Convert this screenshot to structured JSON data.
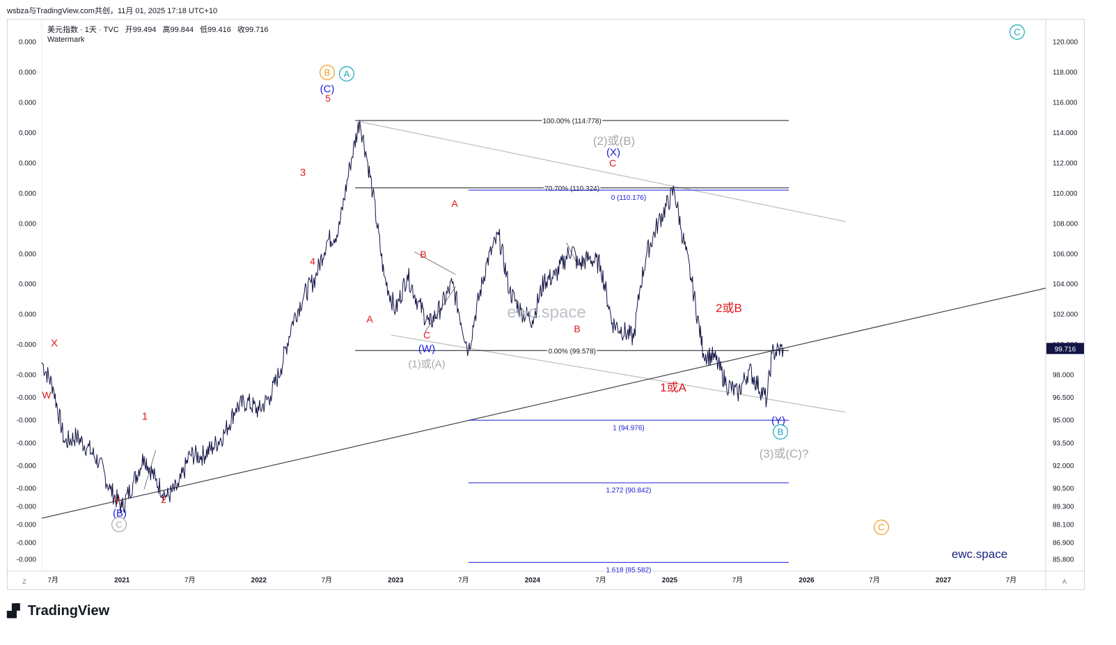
{
  "window_title": "wsbza与TradingView.com共创，11月 01, 2025 17:18 UTC+10",
  "header": {
    "symbol": "美元指数 · 1天 · TVC",
    "open_label": "开",
    "open": "99.494",
    "high_label": "高",
    "high": "99.844",
    "low_label": "低",
    "low": "99.416",
    "close_label": "收",
    "close": "99.716",
    "watermark_label": "Watermark"
  },
  "brand": {
    "logo_text": "TradingView",
    "watermark_center": "ewc.space",
    "watermark_corner": "ewc.space"
  },
  "colors": {
    "price_line": "#131446",
    "wave_red": "#e0151d",
    "wave_blue": "#1a1adb",
    "wave_gray": "#a8a8a8",
    "circle_orange": "#f39a1c",
    "circle_teal": "#14a8bb",
    "fib_black": "#131722",
    "fib_blue": "#1a1adb",
    "current_price_bg": "#131446"
  },
  "chart_data": {
    "type": "line",
    "ylim": [
      85.0,
      121.5
    ],
    "current_price": "99.716",
    "y_ticks": [
      "120.000",
      "118.000",
      "116.000",
      "114.000",
      "112.000",
      "110.000",
      "108.000",
      "106.000",
      "104.000",
      "102.000",
      "100.000",
      "98.000",
      "96.500",
      "95.000",
      "93.500",
      "92.000",
      "90.500",
      "89.300",
      "88.100",
      "86.900",
      "85.800"
    ],
    "left_ticks": [
      "0.000",
      "0.000",
      "0.000",
      "0.000",
      "0.000",
      "0.000",
      "0.000",
      "0.000",
      "0.000",
      "0.000",
      "-0.000",
      "-0.000",
      "-0.000",
      "-0.000",
      "-0.000",
      "-0.000",
      "-0.000",
      "-0.000",
      "-0.000",
      "-0.000",
      "-0.000"
    ],
    "x_ticks": [
      "7月",
      "2021",
      "7月",
      "2022",
      "7月",
      "2023",
      "7月",
      "2024",
      "7月",
      "2025",
      "7月",
      "2026",
      "7月",
      "2027",
      "7月"
    ],
    "axis_corner_left": "Z",
    "axis_corner_right": "A",
    "series": [
      {
        "x": [
          "2020-06-01",
          "2020-07-01",
          "2020-08-01",
          "2020-09-01",
          "2020-10-01",
          "2020-11-01",
          "2020-12-01",
          "2021-01-01",
          "2021-02-01",
          "2021-03-01",
          "2021-04-01",
          "2021-05-01",
          "2021-06-01",
          "2021-07-01",
          "2021-08-01",
          "2021-09-01",
          "2021-10-01",
          "2021-11-01",
          "2021-12-01",
          "2022-01-01",
          "2022-02-01",
          "2022-03-01",
          "2022-04-01",
          "2022-05-01",
          "2022-06-01",
          "2022-07-01",
          "2022-08-01",
          "2022-09-01",
          "2022-09-27",
          "2022-10-15",
          "2022-11-01",
          "2022-12-01",
          "2023-01-01",
          "2023-02-01",
          "2023-03-01",
          "2023-04-01",
          "2023-05-01",
          "2023-06-01",
          "2023-07-14",
          "2023-08-01",
          "2023-09-01",
          "2023-10-03",
          "2023-11-01",
          "2023-12-01",
          "2024-01-01",
          "2024-02-01",
          "2024-03-01",
          "2024-04-16",
          "2024-05-01",
          "2024-06-01",
          "2024-07-01",
          "2024-08-01",
          "2024-09-27",
          "2024-10-15",
          "2024-11-01",
          "2024-12-01",
          "2025-01-13",
          "2025-02-01",
          "2025-03-01",
          "2025-04-01",
          "2025-05-01",
          "2025-06-01",
          "2025-07-01",
          "2025-08-01",
          "2025-09-17",
          "2025-10-01",
          "2025-10-31"
        ],
        "values": [
          98.8,
          97.2,
          93.5,
          93.9,
          93.2,
          92.2,
          90.4,
          89.2,
          90.9,
          92.6,
          91.0,
          89.9,
          90.6,
          92.7,
          92.6,
          93.2,
          94.1,
          95.8,
          96.2,
          95.6,
          96.6,
          98.4,
          101.5,
          103.2,
          104.4,
          106.8,
          107.4,
          111.8,
          114.778,
          112.5,
          110.0,
          104.5,
          102.2,
          104.6,
          102.8,
          101.3,
          102.4,
          104.0,
          99.578,
          101.9,
          105.4,
          107.2,
          103.5,
          102.2,
          101.6,
          104.2,
          104.5,
          106.4,
          105.2,
          105.7,
          105.2,
          101.4,
          100.4,
          103.9,
          106.0,
          108.0,
          110.176,
          107.6,
          104.1,
          99.4,
          99.1,
          97.4,
          96.7,
          98.3,
          96.3,
          99.4,
          99.716
        ]
      }
    ],
    "fib_levels": [
      {
        "label": "100.00% (114.778)",
        "value": 114.778,
        "color": "black"
      },
      {
        "label": "70.70% (110.324)",
        "value": 110.324,
        "color": "black"
      },
      {
        "label": "0.00% (99.578)",
        "value": 99.578,
        "color": "black"
      },
      {
        "label": "0 (110.176)",
        "value": 110.176,
        "color": "blue"
      },
      {
        "label": "1 (94.976)",
        "value": 94.976,
        "color": "blue"
      },
      {
        "label": "1.272 (90.842)",
        "value": 90.842,
        "color": "blue"
      },
      {
        "label": "1.618 (85.582)",
        "value": 85.582,
        "color": "blue"
      }
    ],
    "annotations": [
      {
        "text": "X",
        "color": "red"
      },
      {
        "text": "W",
        "color": "red"
      },
      {
        "text": "Y",
        "color": "red"
      },
      {
        "text": "(B)",
        "color": "blue"
      },
      {
        "text": "C",
        "color": "gray",
        "circled": true
      },
      {
        "text": "1",
        "color": "red"
      },
      {
        "text": "2",
        "color": "red"
      },
      {
        "text": "3",
        "color": "red"
      },
      {
        "text": "4",
        "color": "red"
      },
      {
        "text": "5",
        "color": "red"
      },
      {
        "text": "(C)",
        "color": "blue"
      },
      {
        "text": "B",
        "color": "orange",
        "circled": true
      },
      {
        "text": "A",
        "color": "teal",
        "circled": true
      },
      {
        "text": "A",
        "color": "red"
      },
      {
        "text": "B",
        "color": "red"
      },
      {
        "text": "C",
        "color": "red"
      },
      {
        "text": "(W)",
        "color": "blue"
      },
      {
        "text": "(1)或(A)",
        "color": "gray"
      },
      {
        "text": "A",
        "color": "red"
      },
      {
        "text": "B",
        "color": "red"
      },
      {
        "text": "(2)或(B)",
        "color": "gray"
      },
      {
        "text": "(X)",
        "color": "blue"
      },
      {
        "text": "C",
        "color": "red"
      },
      {
        "text": "1或A",
        "color": "red"
      },
      {
        "text": "2或B",
        "color": "red"
      },
      {
        "text": "(Y)",
        "color": "blue"
      },
      {
        "text": "B",
        "color": "teal",
        "circled": true
      },
      {
        "text": "(3)或(C)?",
        "color": "gray"
      },
      {
        "text": "C",
        "color": "orange",
        "circled": true
      },
      {
        "text": "C",
        "color": "teal",
        "circled": true
      }
    ]
  }
}
